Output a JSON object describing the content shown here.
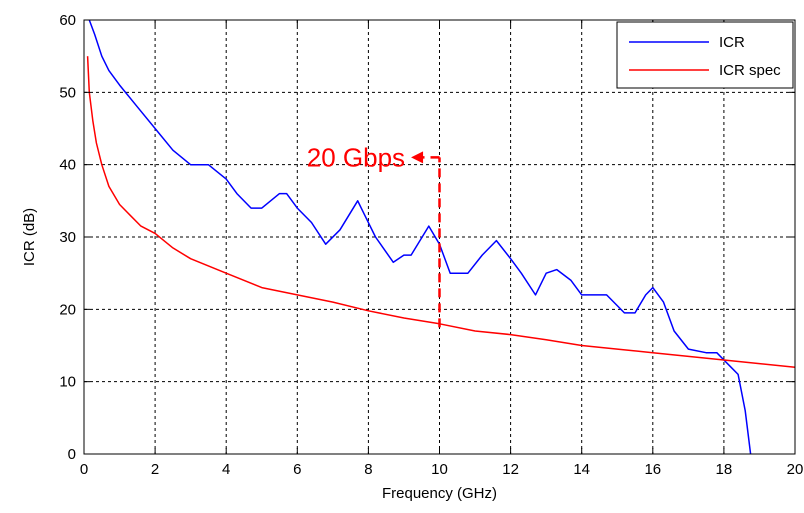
{
  "chart_data": {
    "type": "line",
    "xlabel": "Frequency (GHz)",
    "ylabel": "ICR (dB)",
    "xlim": [
      0,
      20
    ],
    "ylim": [
      0,
      60
    ],
    "x_ticks": [
      0,
      2,
      4,
      6,
      8,
      10,
      12,
      14,
      16,
      18,
      20
    ],
    "y_ticks": [
      0,
      10,
      20,
      30,
      40,
      50,
      60
    ],
    "grid": true,
    "legend_position": "top-right",
    "series": [
      {
        "name": "ICR",
        "color": "#0000ff",
        "x": [
          0.15,
          0.3,
          0.5,
          0.7,
          1.0,
          1.5,
          2.0,
          2.5,
          3.0,
          3.5,
          4.0,
          4.3,
          4.7,
          5.0,
          5.5,
          5.7,
          6.0,
          6.4,
          6.8,
          7.2,
          7.7,
          7.9,
          8.2,
          8.7,
          9.0,
          9.2,
          9.7,
          10.0,
          10.3,
          10.8,
          11.2,
          11.6,
          12.0,
          12.3,
          12.7,
          13.0,
          13.3,
          13.7,
          14.0,
          14.4,
          14.7,
          15.2,
          15.5,
          15.8,
          16.0,
          16.3,
          16.6,
          17.0,
          17.5,
          17.8,
          18.0,
          18.2,
          18.4,
          18.6,
          18.75
        ],
        "y": [
          60,
          58,
          55,
          53,
          51,
          48,
          45,
          42,
          40,
          40,
          38,
          36,
          34,
          34,
          36,
          36,
          34,
          32,
          29,
          31,
          35,
          33,
          30,
          26.5,
          27.5,
          27.5,
          31.5,
          29,
          25,
          25,
          27.5,
          29.5,
          27,
          25,
          22,
          25,
          25.5,
          24,
          22,
          22,
          22,
          19.5,
          19.5,
          22,
          23,
          21,
          17,
          14.5,
          14,
          14,
          13,
          12,
          11,
          6,
          0
        ]
      },
      {
        "name": "ICR spec",
        "color": "#ff0000",
        "x": [
          0.1,
          0.15,
          0.25,
          0.35,
          0.5,
          0.7,
          1.0,
          1.3,
          1.6,
          2.0,
          2.5,
          3.0,
          4.0,
          5.0,
          6.0,
          7.0,
          8.0,
          9.0,
          10.0,
          11.0,
          12.0,
          13.0,
          14.0,
          15.0,
          16.0,
          17.0,
          18.0,
          19.0,
          20.0
        ],
        "y": [
          55,
          50,
          46,
          43,
          40,
          37,
          34.5,
          33,
          31.5,
          30.5,
          28.5,
          27,
          25,
          23,
          22,
          21,
          19.8,
          18.8,
          18,
          17,
          16.5,
          15.8,
          15,
          14.5,
          14,
          13.5,
          13,
          12.5,
          12
        ]
      }
    ],
    "annotations": [
      {
        "text": "20 Gbps",
        "color": "#ff0000",
        "arrow_x_from": 10.0,
        "arrow_x_to": 9.2,
        "arrow_y": 41,
        "vline_x": 10.0,
        "vline_y_from": 17.5,
        "vline_y_to": 41
      }
    ]
  }
}
